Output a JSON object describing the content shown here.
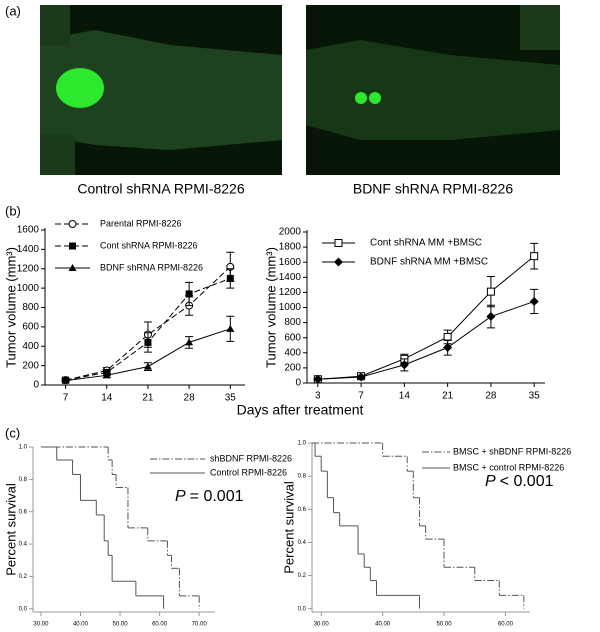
{
  "panel_labels": [
    "(a)",
    "(b)",
    "(c)"
  ],
  "images": [
    {
      "caption": "Control shRNA RPMI-8226"
    },
    {
      "caption": "BDNF shRNA RPMI-8226"
    }
  ],
  "x_label": "Days after treatment",
  "chart_data": [
    {
      "type": "line",
      "y_label": "Tumor volume (mm³)",
      "x": [
        7,
        14,
        21,
        28,
        35
      ],
      "xlim": [
        3.5,
        37.5
      ],
      "xticks": [
        7,
        14,
        21,
        28,
        35
      ],
      "ylim": [
        0,
        1600
      ],
      "yticks": [
        0,
        200,
        400,
        600,
        800,
        1000,
        1200,
        1400,
        1600
      ],
      "series": [
        {
          "name": "Parental RPMI-8226",
          "color": "#000000",
          "line_style": "dashed",
          "marker": "open-circle",
          "values": [
            50,
            150,
            520,
            820,
            1220
          ],
          "errors": [
            15,
            30,
            130,
            100,
            150
          ]
        },
        {
          "name": "Cont shRNA RPMI-8226",
          "color": "#000000",
          "line_style": "dashed",
          "marker": "square",
          "values": [
            50,
            130,
            440,
            940,
            1100
          ],
          "errors": [
            10,
            30,
            100,
            120,
            100
          ]
        },
        {
          "name": "BDNF shRNA RPMI-8226",
          "color": "#000000",
          "line_style": "solid",
          "marker": "triangle",
          "values": [
            45,
            100,
            190,
            440,
            580
          ],
          "errors": [
            10,
            20,
            40,
            60,
            130
          ]
        }
      ]
    },
    {
      "type": "line",
      "y_label": "Tumor volume (mm³)",
      "categories": [
        "3",
        "7",
        "14",
        "21",
        "28",
        "35"
      ],
      "ylim": [
        0,
        2000
      ],
      "yticks": [
        0,
        200,
        400,
        600,
        800,
        1000,
        1200,
        1400,
        1600,
        1800,
        2000
      ],
      "series": [
        {
          "name": "Cont shRNA MM +BMSC",
          "color": "#000000",
          "line_style": "solid",
          "marker": "open-square",
          "values": [
            50,
            90,
            320,
            610,
            1210,
            1680
          ],
          "errors": [
            15,
            20,
            60,
            90,
            200,
            170
          ]
        },
        {
          "name": "BDNF shRNA MM +BMSC",
          "color": "#000000",
          "line_style": "solid",
          "marker": "diamond",
          "values": [
            50,
            80,
            240,
            470,
            880,
            1080
          ],
          "errors": [
            15,
            20,
            80,
            100,
            150,
            160
          ]
        }
      ]
    },
    {
      "type": "step",
      "y_label": "Percent survival",
      "xlim": [
        28,
        74
      ],
      "xticks": [
        {
          "value": 30,
          "label": "30.00"
        },
        {
          "value": 40,
          "label": "40.00"
        },
        {
          "value": 50,
          "label": "50.00"
        },
        {
          "value": 60,
          "label": "60.00"
        },
        {
          "value": 70,
          "label": "70.00"
        }
      ],
      "ylim": [
        -0.02,
        1.0
      ],
      "yticks": [
        {
          "value": 0,
          "label": "0.0"
        },
        0.2,
        0.4,
        0.6,
        0.8,
        {
          "value": 1,
          "label": "1.0"
        }
      ],
      "annotation": [
        "P",
        "= 0.001"
      ],
      "series": [
        {
          "name": "shBDNF RPMI-8226",
          "color": "#555555",
          "line_style": "dashdot",
          "x": [
            30,
            47,
            48,
            49,
            52,
            57,
            62,
            63,
            65,
            70
          ],
          "values": [
            1.0,
            0.92,
            0.83,
            0.75,
            0.5,
            0.42,
            0.33,
            0.25,
            0.08,
            0.0
          ]
        },
        {
          "name": "Control RPMI-8226",
          "color": "#555555",
          "line_style": "solid",
          "x": [
            30,
            34,
            38,
            40,
            44,
            46,
            47,
            48,
            54,
            61
          ],
          "values": [
            1.0,
            0.92,
            0.83,
            0.67,
            0.58,
            0.42,
            0.33,
            0.17,
            0.08,
            0.0
          ]
        }
      ]
    },
    {
      "type": "step",
      "y_label": "Percent survival",
      "xlim": [
        28.5,
        64
      ],
      "xticks": [
        {
          "value": 30,
          "label": "30.00"
        },
        {
          "value": 40,
          "label": "40.00"
        },
        {
          "value": 50,
          "label": "50.00"
        },
        {
          "value": 60,
          "label": "60.00"
        }
      ],
      "ylim": [
        -0.02,
        1.0
      ],
      "yticks": [
        {
          "value": 0,
          "label": "0.0"
        },
        0.2,
        0.4,
        0.6,
        0.8,
        {
          "value": 1,
          "label": "1.0"
        }
      ],
      "annotation": [
        "P",
        "< 0.001"
      ],
      "series": [
        {
          "name": "BMSC + shBDNF RPMI-8226",
          "color": "#555555",
          "line_style": "dashdot",
          "x": [
            28.5,
            40,
            44,
            45,
            46,
            47,
            50,
            55,
            59,
            63
          ],
          "values": [
            1.0,
            0.92,
            0.83,
            0.67,
            0.5,
            0.42,
            0.25,
            0.17,
            0.08,
            0.0
          ]
        },
        {
          "name": "BMSC + control RPMI-8226",
          "color": "#555555",
          "line_style": "solid",
          "x": [
            28.5,
            29,
            30,
            31,
            32,
            33,
            36,
            37,
            38,
            39,
            46
          ],
          "values": [
            1.0,
            0.92,
            0.83,
            0.67,
            0.58,
            0.5,
            0.33,
            0.25,
            0.17,
            0.08,
            0.0
          ]
        }
      ]
    }
  ]
}
